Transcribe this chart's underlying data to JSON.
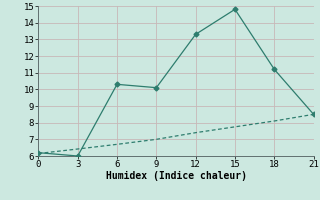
{
  "line1_x": [
    0,
    3,
    6,
    9,
    12,
    15,
    18,
    21
  ],
  "line1_y": [
    6.2,
    6.0,
    10.3,
    10.1,
    13.3,
    14.8,
    11.2,
    8.5
  ],
  "line2_x": [
    0,
    3,
    6,
    9,
    12,
    15,
    18,
    21
  ],
  "line2_y": [
    6.15,
    6.42,
    6.7,
    7.0,
    7.4,
    7.75,
    8.1,
    8.5
  ],
  "line_color": "#2e7d6e",
  "bg_color": "#cce8e0",
  "grid_color": "#c8b8b8",
  "xlabel": "Humidex (Indice chaleur)",
  "xlim": [
    0,
    21
  ],
  "ylim": [
    6,
    15
  ],
  "xticks": [
    0,
    3,
    6,
    9,
    12,
    15,
    18,
    21
  ],
  "yticks": [
    6,
    7,
    8,
    9,
    10,
    11,
    12,
    13,
    14,
    15
  ],
  "marker": "D",
  "markersize": 2.5,
  "linewidth": 0.9,
  "xlabel_fontsize": 7,
  "tick_fontsize": 6.5
}
